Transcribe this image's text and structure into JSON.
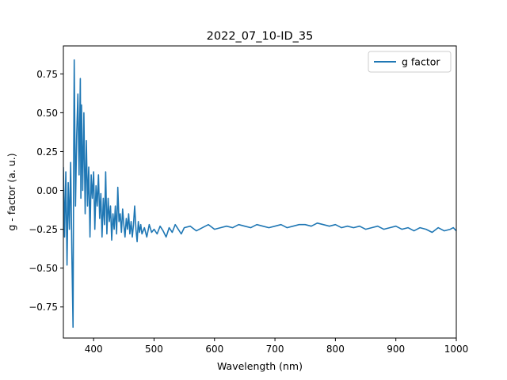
{
  "chart_data": {
    "type": "line",
    "title": "2022_07_10-ID_35",
    "xlabel": "Wavelength (nm)",
    "ylabel": "g - factor (a. u.)",
    "xlim": [
      350,
      1000
    ],
    "ylim": [
      -0.95,
      0.93
    ],
    "xticks": [
      400,
      500,
      600,
      700,
      800,
      900,
      1000
    ],
    "xtick_labels": [
      "400",
      "500",
      "600",
      "700",
      "800",
      "900",
      "1000"
    ],
    "yticks": [
      -0.75,
      -0.5,
      -0.25,
      0.0,
      0.25,
      0.5,
      0.75
    ],
    "ytick_labels": [
      "−0.75",
      "−0.50",
      "−0.25",
      "0.00",
      "0.25",
      "0.50",
      "0.75"
    ],
    "grid": false,
    "legend_position": "top-right",
    "series": [
      {
        "name": "g factor",
        "color": "#1f77b4",
        "x": [
          350,
          352,
          354,
          356,
          358,
          360,
          362,
          364,
          366,
          367,
          368,
          370,
          372,
          374,
          376,
          378,
          379,
          380,
          382,
          384,
          386,
          388,
          390,
          392,
          394,
          396,
          398,
          400,
          402,
          404,
          406,
          408,
          410,
          412,
          414,
          416,
          418,
          420,
          422,
          424,
          426,
          428,
          430,
          432,
          434,
          436,
          438,
          440,
          442,
          444,
          446,
          448,
          450,
          452,
          454,
          456,
          458,
          460,
          462,
          464,
          466,
          468,
          470,
          472,
          474,
          476,
          478,
          480,
          484,
          488,
          492,
          496,
          500,
          505,
          510,
          515,
          520,
          525,
          530,
          535,
          540,
          545,
          550,
          560,
          570,
          580,
          590,
          600,
          610,
          620,
          630,
          640,
          650,
          660,
          670,
          680,
          690,
          700,
          710,
          720,
          730,
          740,
          750,
          760,
          770,
          780,
          790,
          800,
          810,
          820,
          830,
          840,
          850,
          860,
          870,
          880,
          890,
          900,
          910,
          920,
          930,
          940,
          950,
          960,
          970,
          980,
          990,
          995,
          1000
        ],
        "values": [
          0.15,
          -0.3,
          0.12,
          -0.48,
          0.05,
          -0.25,
          0.18,
          -0.4,
          -0.88,
          0.2,
          0.84,
          -0.1,
          0.35,
          0.62,
          0.1,
          0.72,
          -0.05,
          0.55,
          0.0,
          0.5,
          -0.15,
          0.32,
          -0.1,
          0.15,
          -0.3,
          0.1,
          -0.05,
          0.12,
          -0.25,
          0.03,
          -0.1,
          0.1,
          -0.18,
          -0.02,
          -0.3,
          -0.05,
          -0.22,
          0.12,
          -0.28,
          -0.05,
          -0.2,
          -0.1,
          -0.32,
          -0.15,
          -0.25,
          -0.1,
          -0.28,
          0.02,
          -0.2,
          -0.15,
          -0.27,
          -0.12,
          -0.22,
          -0.3,
          -0.18,
          -0.25,
          -0.15,
          -0.28,
          -0.2,
          -0.3,
          -0.22,
          -0.1,
          -0.25,
          -0.33,
          -0.2,
          -0.27,
          -0.22,
          -0.28,
          -0.24,
          -0.3,
          -0.22,
          -0.27,
          -0.25,
          -0.28,
          -0.23,
          -0.26,
          -0.3,
          -0.24,
          -0.27,
          -0.22,
          -0.25,
          -0.28,
          -0.24,
          -0.23,
          -0.26,
          -0.24,
          -0.22,
          -0.25,
          -0.24,
          -0.23,
          -0.24,
          -0.22,
          -0.23,
          -0.24,
          -0.22,
          -0.23,
          -0.24,
          -0.23,
          -0.22,
          -0.24,
          -0.23,
          -0.22,
          -0.22,
          -0.23,
          -0.21,
          -0.22,
          -0.23,
          -0.22,
          -0.24,
          -0.23,
          -0.24,
          -0.23,
          -0.25,
          -0.24,
          -0.23,
          -0.25,
          -0.24,
          -0.23,
          -0.25,
          -0.24,
          -0.26,
          -0.24,
          -0.25,
          -0.27,
          -0.24,
          -0.26,
          -0.25,
          -0.24,
          -0.26
        ]
      }
    ]
  }
}
